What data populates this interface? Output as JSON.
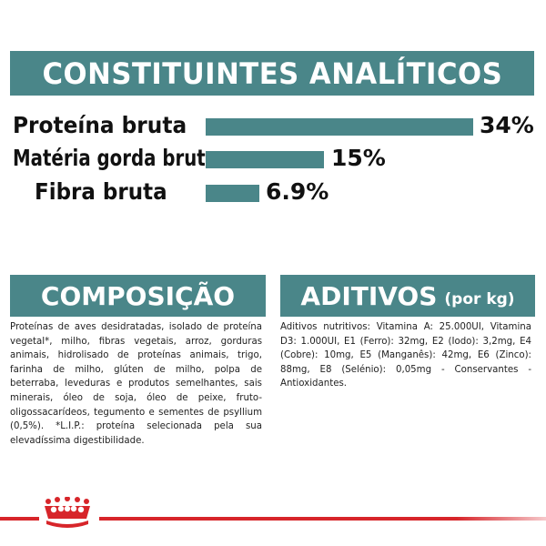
{
  "analytical": {
    "title": "CONSTITUINTES ANALÍTICOS",
    "rows": [
      {
        "label": "Proteína bruta",
        "value": "34%",
        "percent": 34
      },
      {
        "label": "Matéria gorda bruta",
        "value": "15%",
        "percent": 15
      },
      {
        "label": "Fibra bruta",
        "value": "6.9%",
        "percent": 6.9
      }
    ]
  },
  "composition": {
    "title": "COMPOSIÇÃO",
    "text": "Proteínas de aves desidratadas, isolado de proteína vegetal*, milho, fibras vegetais, arroz, gorduras animais, hidrolisado de proteínas animais, trigo, farinha de milho, glúten de milho, polpa de beterraba, leveduras e produtos semelhantes, sais minerais, óleo de soja, óleo de peixe, fruto-oligossacarídeos, tegumento e sementes de psyllium (0,5%). *L.I.P.: proteína selecionada pela sua elevadíssima digestibilidade."
  },
  "additives": {
    "title": "ADITIVOS",
    "unit": "(por kg)",
    "text": "Aditivos nutritivos: Vitamina A: 25.000UI, Vitamina D3: 1.000UI, E1 (Ferro): 32mg, E2 (Iodo): 3,2mg, E4 (Cobre): 10mg, E5 (Manganês): 42mg, E6 (Zinco): 88mg, E8 (Selénio): 0,05mg - Conservantes - Antioxidantes."
  },
  "colors": {
    "accent": "#4a8689",
    "brand_red": "#d7252a"
  },
  "icons": {
    "brand_logo": "crown-icon"
  }
}
